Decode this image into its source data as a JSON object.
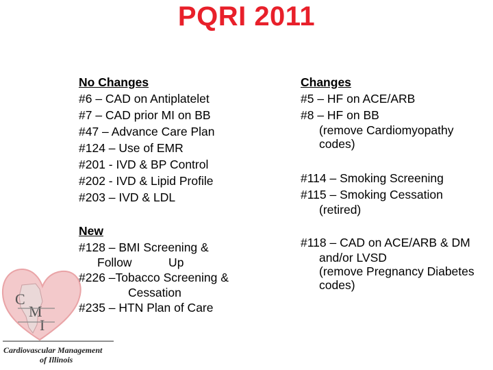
{
  "title": "PQRI 2011",
  "left": {
    "no_changes_heading": "No Changes",
    "no_changes": [
      "#6 – CAD on Antiplatelet",
      "#7 – CAD prior MI on BB",
      "#47 – Advance Care Plan",
      "#124 – Use of EMR",
      "#201 - IVD & BP Control",
      "#202 - IVD & Lipid Profile",
      "#203 – IVD & LDL"
    ],
    "new_heading": "New",
    "new_1": "#128 – BMI Screening &",
    "new_1_cont": "Follow           Up",
    "new_2": "#226 –Tobacco Screening &",
    "new_2_cont": "Cessation",
    "new_3": "#235 – HTN Plan of Care"
  },
  "right": {
    "changes_heading": "Changes",
    "c1": "#5 – HF on ACE/ARB",
    "c2": "#8 – HF on BB",
    "c2_cont_1": "(remove Cardiomyopathy",
    "c2_cont_2": "codes)",
    "c3": "#114 – Smoking Screening",
    "c4": "#115 – Smoking Cessation",
    "c4_cont": "(retired)",
    "c5": "#118 – CAD on ACE/ARB & DM",
    "c5_cont_1": "and/or LVSD",
    "c5_cont_2": "(remove Pregnancy Diabetes",
    "c5_cont_3": "codes)"
  },
  "logo": {
    "letters": [
      "C",
      "M",
      "I"
    ],
    "line1": "Cardiovascular Management",
    "line2": "of Illinois",
    "heart_color": "#e9a3a6"
  }
}
